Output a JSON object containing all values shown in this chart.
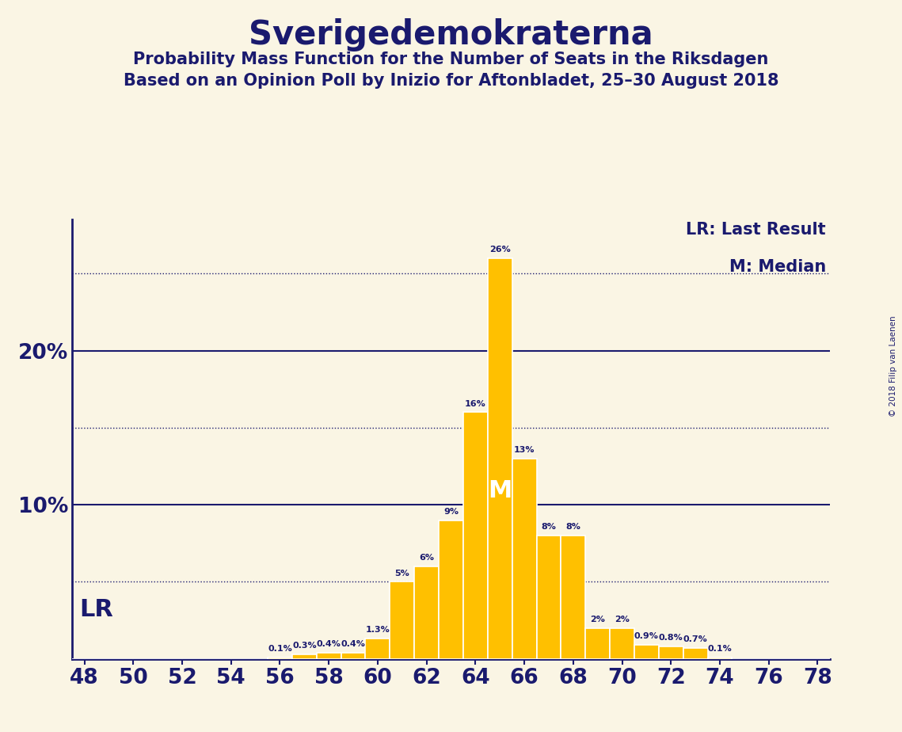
{
  "title": "Sverigedemokraterna",
  "subtitle1": "Probability Mass Function for the Number of Seats in the Riksdagen",
  "subtitle2": "Based on an Opinion Poll by Inizio for Aftonbladet, 25–30 August 2018",
  "copyright": "© 2018 Filip van Laenen",
  "background_color": "#faf5e4",
  "bar_color": "#ffc000",
  "bar_edge_color": "#ffffff",
  "title_color": "#1a1a6e",
  "text_color": "#1a1a6e",
  "seats": [
    48,
    49,
    50,
    51,
    52,
    53,
    54,
    55,
    56,
    57,
    58,
    59,
    60,
    61,
    62,
    63,
    64,
    65,
    66,
    67,
    68,
    69,
    70,
    71,
    72,
    73,
    74,
    75,
    76,
    77,
    78
  ],
  "probabilities": [
    0.0,
    0.0,
    0.0,
    0.0,
    0.0,
    0.0,
    0.0,
    0.0,
    0.1,
    0.3,
    0.4,
    0.4,
    1.3,
    5.0,
    6.0,
    9.0,
    16.0,
    26.0,
    13.0,
    8.0,
    8.0,
    2.0,
    2.0,
    0.9,
    0.8,
    0.7,
    0.1,
    0.0,
    0.0,
    0.0,
    0.0
  ],
  "median_seat": 65,
  "lr_seat": 49,
  "ylim": [
    0,
    28.5
  ],
  "xlim": [
    47.5,
    78.5
  ],
  "xticks": [
    48,
    50,
    52,
    54,
    56,
    58,
    60,
    62,
    64,
    66,
    68,
    70,
    72,
    74,
    76,
    78
  ],
  "dotted_lines": [
    5,
    15,
    25
  ],
  "solid_lines": [
    10,
    20
  ],
  "lr_line_y": 5,
  "legend_lr": "LR: Last Result",
  "legend_m": "M: Median",
  "lr_label": "LR",
  "m_label": "M"
}
